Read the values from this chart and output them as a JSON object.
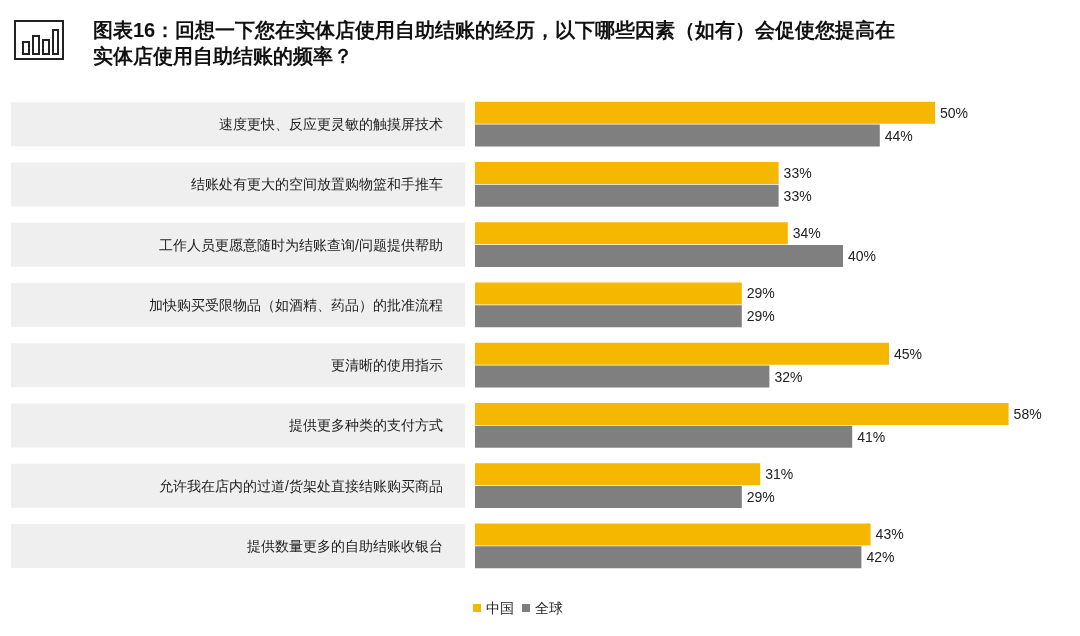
{
  "chart_data": {
    "type": "bar",
    "orientation": "horizontal",
    "title": "图表16：回想一下您在实体店使用自助结账的经历，以下哪些因素（如有）会促使您提高在实体店使用自助结账的频率？",
    "categories": [
      "速度更快、反应更灵敏的触摸屏技术",
      "结账处有更大的空间放置购物篮和手推车",
      "工作人员更愿意随时为结账查询/问题提供帮助",
      "加快购买受限物品（如酒精、药品）的批准流程",
      "更清晰的使用指示",
      "提供更多种类的支付方式",
      "允许我在店内的过道/货架处直接结账购买商品",
      "提供数量更多的自助结账收银台"
    ],
    "series": [
      {
        "name": "中国",
        "color": "#f5b700",
        "values": [
          50,
          33,
          34,
          29,
          45,
          58,
          31,
          43
        ],
        "value_labels": [
          "50%",
          "33%",
          "34%",
          "29%",
          "45%",
          "58%",
          "31%",
          "43%"
        ]
      },
      {
        "name": "全球",
        "color": "#7f7f7f",
        "values": [
          44,
          33,
          40,
          29,
          32,
          41,
          29,
          42
        ],
        "value_labels": [
          "44%",
          "33%",
          "40%",
          "29%",
          "32%",
          "41%",
          "29%",
          "42%"
        ]
      }
    ],
    "legend": "bottom"
  }
}
